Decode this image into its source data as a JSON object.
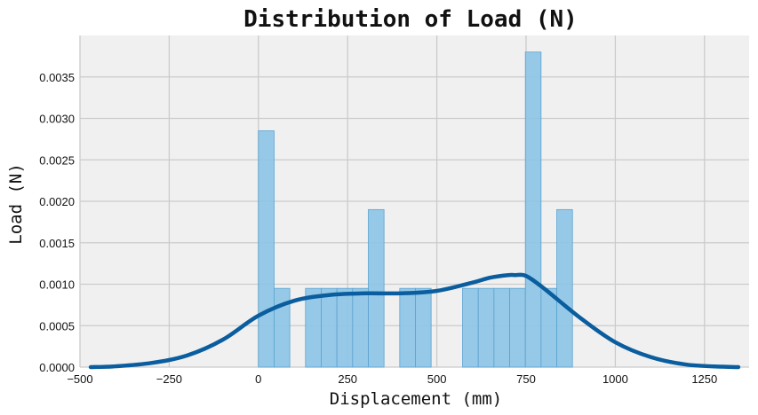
{
  "chart_data": {
    "type": "bar",
    "title": "Distribution of Load (N)",
    "xlabel": "Displacement (mm)",
    "ylabel": "Load (N)",
    "xlim": [
      -500,
      1375
    ],
    "ylim": [
      0,
      0.004
    ],
    "xticks": [
      -500,
      -250,
      0,
      250,
      500,
      750,
      1000,
      1250
    ],
    "xtick_labels": [
      "−500",
      "−250",
      "0",
      "250",
      "500",
      "750",
      "1000",
      "1250"
    ],
    "yticks": [
      0,
      0.0005,
      0.001,
      0.0015,
      0.002,
      0.0025,
      0.003,
      0.0035
    ],
    "ytick_labels": [
      "0.0000",
      "0.0005",
      "0.0010",
      "0.0015",
      "0.0020",
      "0.0025",
      "0.0030",
      "0.0035"
    ],
    "grid": true,
    "histogram": {
      "bin_width": 44,
      "bins": [
        {
          "start": 0,
          "density": 0.00285
        },
        {
          "start": 44,
          "density": 0.00095
        },
        {
          "start": 132,
          "density": 0.00095
        },
        {
          "start": 176,
          "density": 0.00095
        },
        {
          "start": 220,
          "density": 0.00095
        },
        {
          "start": 264,
          "density": 0.00095
        },
        {
          "start": 308,
          "density": 0.0019
        },
        {
          "start": 396,
          "density": 0.00095
        },
        {
          "start": 440,
          "density": 0.00095
        },
        {
          "start": 572,
          "density": 0.00095
        },
        {
          "start": 616,
          "density": 0.00095
        },
        {
          "start": 660,
          "density": 0.00095
        },
        {
          "start": 704,
          "density": 0.00095
        },
        {
          "start": 748,
          "density": 0.0038
        },
        {
          "start": 792,
          "density": 0.00095
        },
        {
          "start": 836,
          "density": 0.0019
        }
      ]
    },
    "kde": {
      "x": [
        -470,
        -400,
        -300,
        -200,
        -100,
        0,
        100,
        200,
        300,
        400,
        500,
        600,
        650,
        700,
        720,
        750,
        800,
        900,
        1000,
        1100,
        1200,
        1300,
        1345
      ],
      "y": [
        0.0,
        1e-05,
        5e-05,
        0.00014,
        0.00033,
        0.00062,
        0.0008,
        0.00087,
        0.00089,
        0.00089,
        0.00092,
        0.00102,
        0.00108,
        0.00111,
        0.00111,
        0.0011,
        0.00095,
        0.0006,
        0.0003,
        0.00012,
        3e-05,
        5e-06,
        0.0
      ]
    },
    "colors": {
      "background": "#f0f0f0",
      "grid": "#cbcbcb",
      "bar_fill": "#8cc4e6",
      "bar_stroke": "#5aa3d1",
      "kde": "#0a5d9e"
    }
  }
}
